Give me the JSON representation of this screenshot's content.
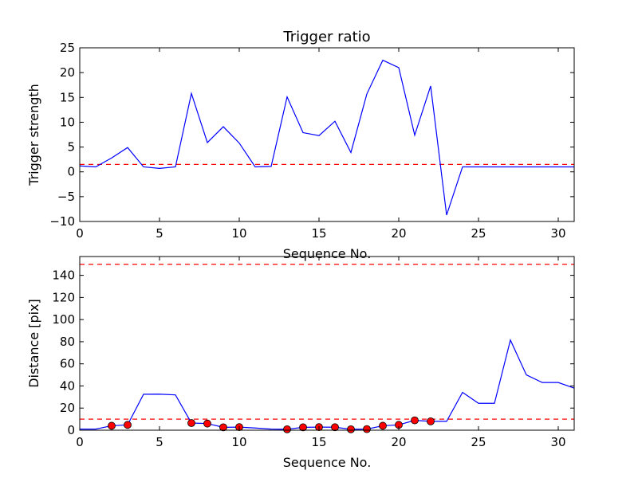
{
  "chart_data": [
    {
      "type": "line",
      "title": "Trigger ratio",
      "xlabel": "Sequence No.",
      "ylabel": "Trigger strength",
      "xlim": [
        0,
        31
      ],
      "ylim": [
        -10,
        25
      ],
      "xticks": [
        0,
        5,
        10,
        15,
        20,
        25,
        30
      ],
      "yticks": [
        -10,
        -5,
        0,
        5,
        10,
        15,
        20,
        25
      ],
      "grid": false,
      "series": [
        {
          "color": "#0000ff",
          "x": [
            0,
            1,
            2,
            3,
            4,
            5,
            6,
            7,
            8,
            9,
            10,
            11,
            12,
            13,
            14,
            15,
            16,
            17,
            18,
            19,
            20,
            21,
            22,
            23,
            24,
            25,
            26,
            27,
            28,
            29,
            30,
            31
          ],
          "y": [
            1.2,
            1.0,
            2.8,
            4.9,
            1.0,
            0.7,
            1.0,
            15.8,
            5.9,
            9.1,
            5.8,
            1.0,
            1.1,
            15.1,
            7.9,
            7.3,
            10.2,
            3.9,
            15.7,
            22.5,
            21.0,
            7.4,
            17.3,
            -8.7,
            1.0,
            1.0,
            1.0,
            1.0,
            1.0,
            1.0,
            1.0,
            1.0
          ]
        }
      ],
      "hlines": [
        {
          "y": 1.5,
          "color": "#ff0000",
          "style": "dashed"
        }
      ]
    },
    {
      "type": "line",
      "title": "",
      "xlabel": "Sequence No.",
      "ylabel": "Distance [pix]",
      "xlim": [
        0,
        31
      ],
      "ylim": [
        0,
        157
      ],
      "xticks": [
        0,
        5,
        10,
        15,
        20,
        25,
        30
      ],
      "yticks": [
        0,
        20,
        40,
        60,
        80,
        100,
        120,
        140
      ],
      "grid": false,
      "series": [
        {
          "color": "#0000ff",
          "x": [
            0,
            1,
            2,
            3,
            4,
            5,
            6,
            7,
            8,
            9,
            10,
            11,
            12,
            13,
            14,
            15,
            16,
            17,
            18,
            19,
            20,
            21,
            22,
            23,
            24,
            25,
            26,
            27,
            28,
            29,
            30,
            31
          ],
          "y": [
            1.0,
            1.0,
            4.0,
            4.8,
            32.5,
            32.6,
            31.9,
            6.5,
            6.0,
            2.6,
            2.8,
            2.0,
            1.0,
            0.8,
            2.6,
            2.8,
            2.7,
            0.8,
            1.0,
            4.0,
            4.8,
            8.9,
            8.0,
            8.0,
            34.2,
            24.3,
            24.3,
            81.5,
            50.0,
            43.1,
            43.1,
            38.0
          ]
        }
      ],
      "markers": {
        "color": "#ff0000",
        "x": [
          2,
          3,
          7,
          8,
          9,
          10,
          13,
          14,
          15,
          16,
          17,
          18,
          19,
          20,
          21,
          22
        ],
        "y": [
          4.0,
          4.8,
          6.5,
          6.0,
          2.6,
          2.8,
          0.8,
          2.6,
          2.8,
          2.7,
          0.8,
          1.0,
          4.0,
          4.8,
          8.9,
          8.0
        ]
      },
      "hlines": [
        {
          "y": 150,
          "color": "#ff0000",
          "style": "dashed"
        },
        {
          "y": 10,
          "color": "#ff0000",
          "style": "dashed"
        }
      ]
    }
  ]
}
